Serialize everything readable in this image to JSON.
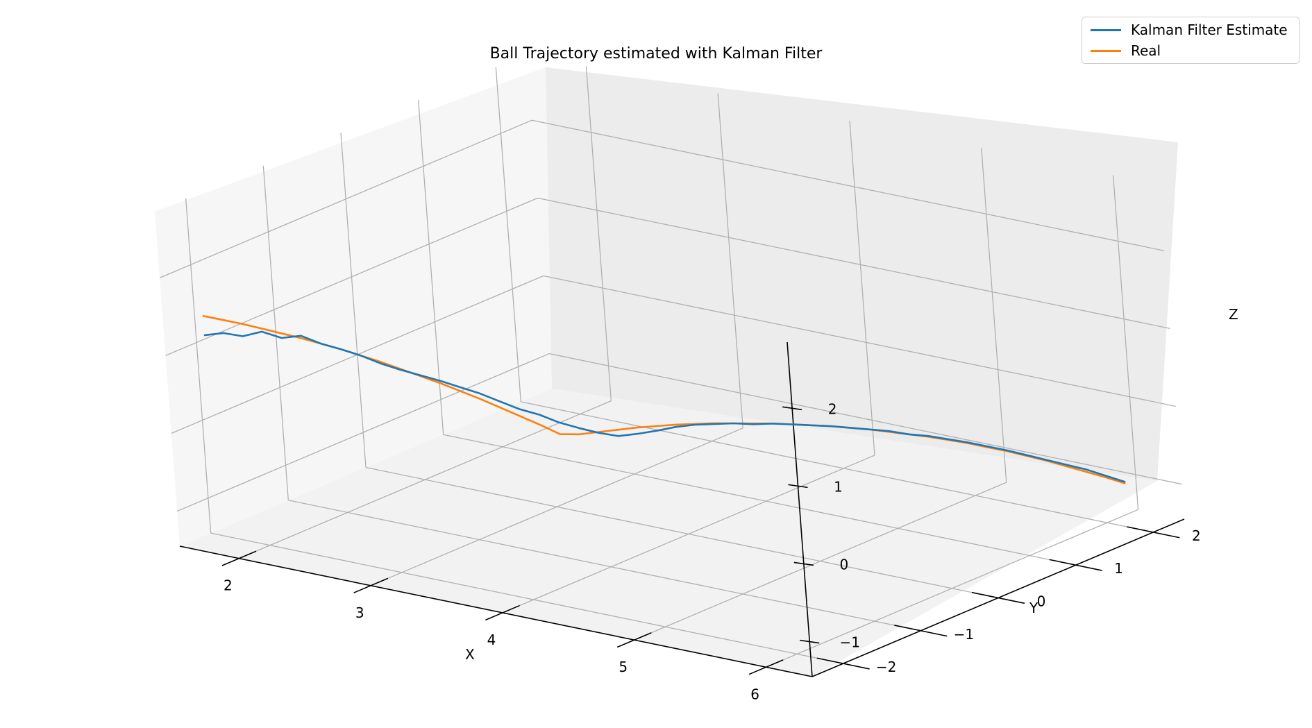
{
  "chart_data": {
    "type": "line",
    "title": "Ball Trajectory estimated with Kalman Filter",
    "xlabel": "X",
    "ylabel": "Y",
    "zlabel": "Z",
    "xticks": [
      "2",
      "3",
      "4",
      "5",
      "6"
    ],
    "yticks": [
      "−2",
      "−1",
      "0",
      "1",
      "2"
    ],
    "zticks": [
      "−1",
      "0",
      "1",
      "2"
    ],
    "grid": true,
    "legend_position": "top-right",
    "series": [
      {
        "name": "Kalman Filter Estimate",
        "color": "#1f77b4",
        "x": [
          1.55,
          1.65,
          1.75,
          1.85,
          1.95,
          2.05,
          2.15,
          2.25,
          2.35,
          2.45,
          2.55,
          2.65,
          2.75,
          2.85,
          2.95,
          3.05,
          3.15,
          3.25,
          3.35,
          3.45,
          3.55,
          3.65,
          3.75,
          3.85,
          3.95,
          4.05,
          4.15,
          4.25,
          4.35,
          4.45,
          4.55,
          4.65,
          4.75,
          4.85,
          4.95,
          5.05,
          5.15,
          5.25,
          5.35,
          5.45,
          5.55,
          5.65,
          5.75,
          5.85,
          5.95,
          6.05,
          6.15,
          6.25
        ],
        "y": [
          -1.9,
          -1.82,
          -1.74,
          -1.66,
          -1.58,
          -1.5,
          -1.42,
          -1.34,
          -1.26,
          -1.18,
          -1.1,
          -1.02,
          -0.94,
          -0.86,
          -0.78,
          -0.7,
          -0.62,
          -0.54,
          -0.46,
          -0.38,
          -0.3,
          -0.22,
          -0.14,
          -0.06,
          0.02,
          0.1,
          0.18,
          0.26,
          0.34,
          0.42,
          0.5,
          0.58,
          0.66,
          0.74,
          0.82,
          0.9,
          0.98,
          1.06,
          1.14,
          1.22,
          1.3,
          1.38,
          1.46,
          1.54,
          1.62,
          1.7,
          1.78,
          1.86
        ],
        "z": [
          1.05,
          1.08,
          1.04,
          1.1,
          1.02,
          1.05,
          0.95,
          0.88,
          0.8,
          0.7,
          0.62,
          0.55,
          0.48,
          0.4,
          0.32,
          0.22,
          0.12,
          0.05,
          -0.05,
          -0.12,
          -0.18,
          -0.22,
          -0.19,
          -0.15,
          -0.1,
          -0.07,
          -0.06,
          -0.05,
          -0.06,
          -0.05,
          -0.06,
          -0.07,
          -0.08,
          -0.1,
          -0.12,
          -0.14,
          -0.18,
          -0.2,
          -0.24,
          -0.28,
          -0.33,
          -0.38,
          -0.44,
          -0.5,
          -0.56,
          -0.62,
          -0.7,
          -0.78
        ]
      },
      {
        "name": "Real",
        "color": "#ff7f0e",
        "x": [
          1.55,
          1.65,
          1.75,
          1.85,
          1.95,
          2.05,
          2.15,
          2.25,
          2.35,
          2.45,
          2.55,
          2.65,
          2.75,
          2.85,
          2.95,
          3.05,
          3.15,
          3.25,
          3.35,
          3.45,
          3.55,
          3.65,
          3.75,
          3.85,
          3.95,
          4.05,
          4.15,
          4.25,
          4.35,
          4.45,
          4.55,
          4.65,
          4.75,
          4.85,
          4.95,
          5.05,
          5.15,
          5.25,
          5.35,
          5.45,
          5.55,
          5.65,
          5.75,
          5.85,
          5.95,
          6.05,
          6.15,
          6.25
        ],
        "y": [
          -1.9,
          -1.82,
          -1.74,
          -1.66,
          -1.58,
          -1.5,
          -1.42,
          -1.34,
          -1.26,
          -1.18,
          -1.1,
          -1.02,
          -0.94,
          -0.86,
          -0.78,
          -0.7,
          -0.62,
          -0.54,
          -0.46,
          -0.38,
          -0.3,
          -0.22,
          -0.14,
          -0.06,
          0.02,
          0.1,
          0.18,
          0.26,
          0.34,
          0.42,
          0.5,
          0.58,
          0.66,
          0.74,
          0.82,
          0.9,
          0.98,
          1.06,
          1.14,
          1.22,
          1.3,
          1.38,
          1.46,
          1.54,
          1.62,
          1.7,
          1.78,
          1.86
        ],
        "z": [
          1.3,
          1.25,
          1.2,
          1.14,
          1.08,
          1.02,
          0.95,
          0.88,
          0.8,
          0.72,
          0.63,
          0.54,
          0.45,
          0.35,
          0.25,
          0.14,
          0.03,
          -0.08,
          -0.2,
          -0.2,
          -0.17,
          -0.14,
          -0.11,
          -0.09,
          -0.07,
          -0.06,
          -0.05,
          -0.05,
          -0.05,
          -0.05,
          -0.06,
          -0.07,
          -0.08,
          -0.1,
          -0.12,
          -0.15,
          -0.18,
          -0.21,
          -0.25,
          -0.29,
          -0.34,
          -0.39,
          -0.45,
          -0.51,
          -0.58,
          -0.65,
          -0.72,
          -0.8
        ]
      }
    ]
  }
}
